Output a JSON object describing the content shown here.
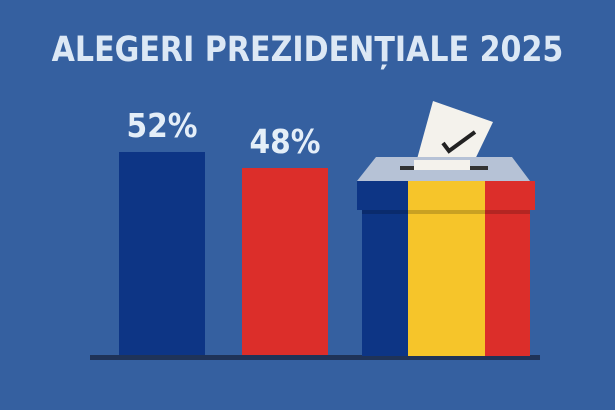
{
  "chart_data": {
    "type": "bar",
    "title": "ALEGERI PREZIDENȚIALE 2025",
    "categories": [
      "",
      ""
    ],
    "values": [
      52,
      48
    ],
    "value_labels": [
      "52%",
      "48%"
    ],
    "colors": [
      "#0d3585",
      "#dc2e2a"
    ],
    "ylim": [
      0,
      52
    ],
    "grid": false,
    "legend": "none"
  },
  "colors": {
    "background": "#3560a0",
    "flag_blue": "#0d3585",
    "flag_yellow": "#f6c52a",
    "flag_red": "#dc2e2a"
  },
  "illustration": {
    "icon": "ballot-box-icon",
    "ballot_icon": "check-mark-icon"
  }
}
